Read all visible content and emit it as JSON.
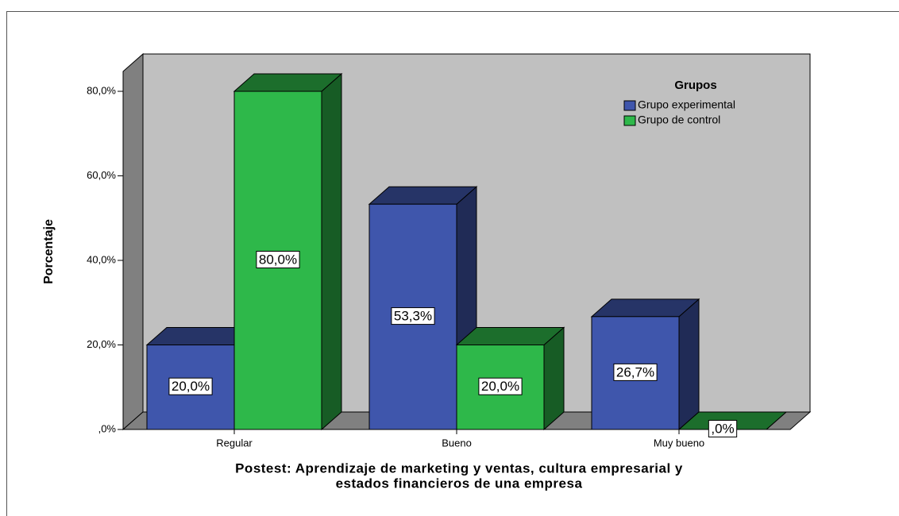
{
  "chart_data": {
    "type": "bar3d",
    "xlabel": [
      "Postest: Aprendizaje de marketing y ventas, cultura empresarial y",
      "estados financieros de una empresa"
    ],
    "ylabel": "Porcentaje",
    "categories": [
      "Regular",
      "Bueno",
      "Muy bueno"
    ],
    "legend_title": "Grupos",
    "legend": "upper right",
    "series": [
      {
        "name": "Grupo experimental",
        "color": "#3f56ac",
        "values": [
          20,
          53.3,
          26.7
        ],
        "value_labels": [
          "20,0%",
          "53,3%",
          "26,7%"
        ]
      },
      {
        "name": "Grupo de control",
        "color": "#2eb84a",
        "values": [
          80,
          20,
          0
        ],
        "value_labels": [
          "80,0%",
          "20,0%",
          ",0%"
        ]
      }
    ],
    "ylim": [
      0,
      84.7
    ],
    "yticks": [
      {
        "value": 0,
        "label": ",0%"
      },
      {
        "value": 20,
        "label": "20,0%"
      },
      {
        "value": 40,
        "label": "40,0%"
      },
      {
        "value": 60,
        "label": "60,0%"
      },
      {
        "value": 80,
        "label": "80,0%"
      }
    ]
  }
}
